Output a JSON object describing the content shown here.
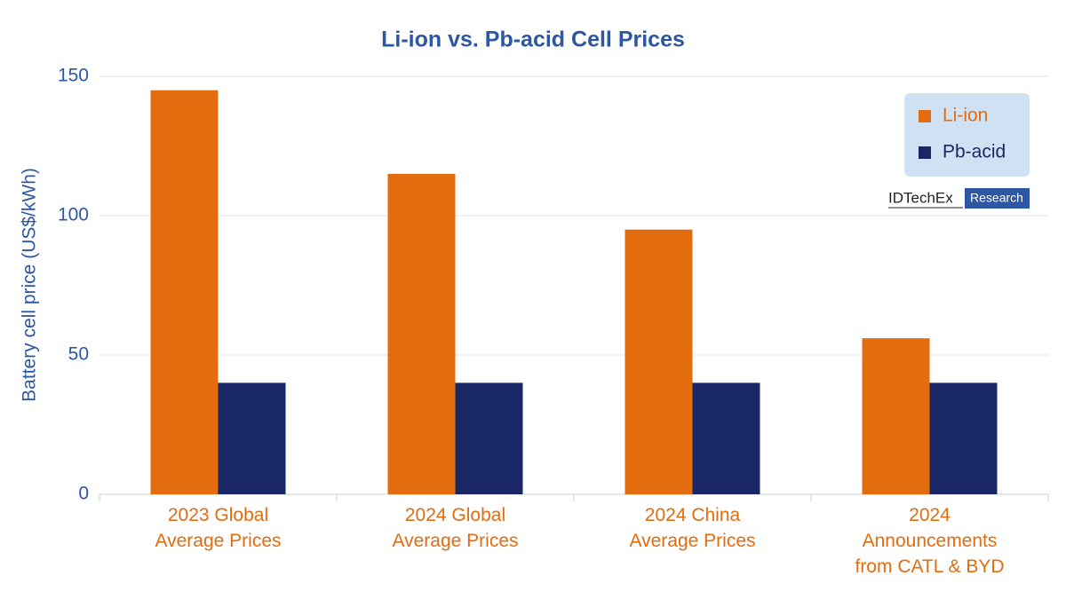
{
  "chart_data": {
    "type": "bar",
    "title": "Li-ion vs. Pb-acid Cell Prices",
    "y_label": "Battery cell price (US$/kWh)",
    "categories": [
      "2023 Global\nAverage Prices",
      "2024 Global\nAverage Prices",
      "2024 China\nAverage Prices",
      "2024\nAnnouncements\nfrom CATL & BYD"
    ],
    "series": [
      {
        "name": "Li-ion",
        "color": "#e36c0f",
        "values": [
          145,
          115,
          95,
          56
        ]
      },
      {
        "name": "Pb-acid",
        "color": "#1a2766",
        "values": [
          40,
          40,
          40,
          40
        ]
      }
    ],
    "ylim": [
      0,
      150
    ],
    "yticks": [
      0,
      50,
      100,
      150
    ],
    "grid": true,
    "legend": "top-right"
  },
  "watermark": {
    "name": "IDTechEx",
    "tag": "Research"
  }
}
